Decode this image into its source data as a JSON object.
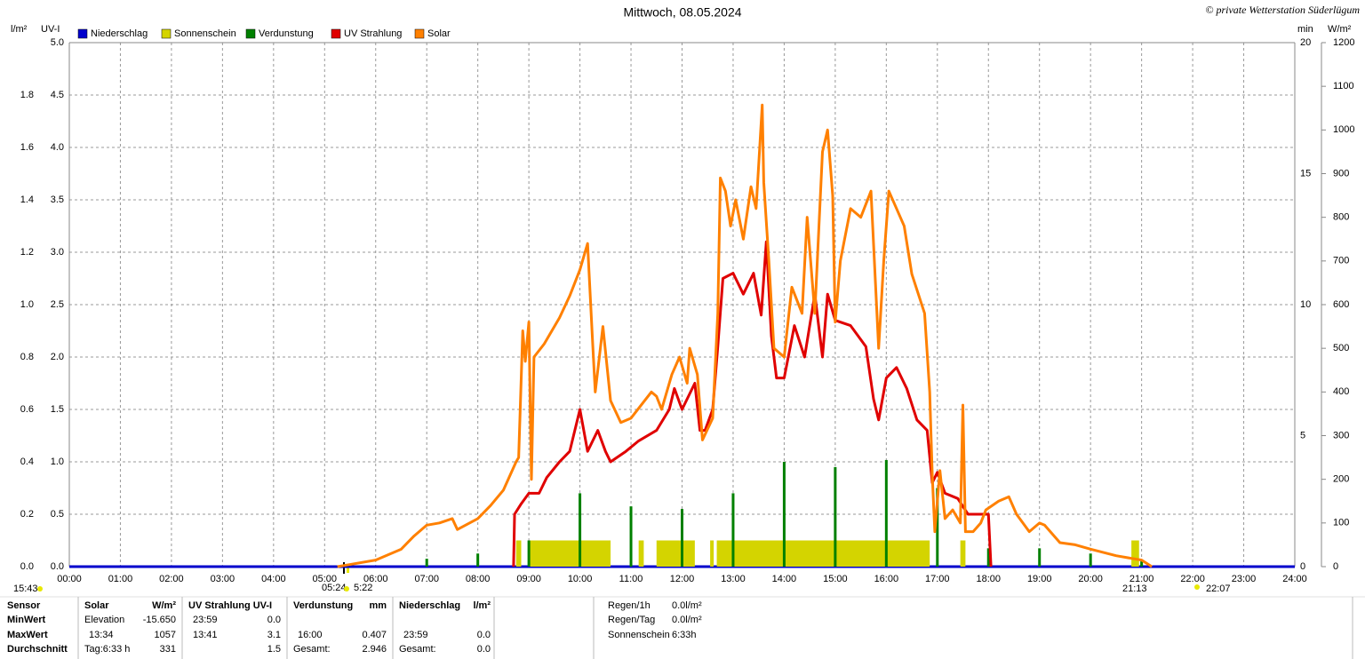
{
  "chart_data": {
    "type": "multi-axis",
    "title": "Mittwoch, 08.05.2024",
    "copyright": "© private Wetterstation Süderlügum",
    "xlim": [
      0,
      24
    ],
    "xticks": [
      {
        "value": 0,
        "label": "00:00"
      },
      {
        "value": 1,
        "label": "01:00"
      },
      {
        "value": 2,
        "label": "02:00"
      },
      {
        "value": 3,
        "label": "03:00"
      },
      {
        "value": 4,
        "label": "04:00"
      },
      {
        "value": 5,
        "label": "05:00"
      },
      {
        "value": 6,
        "label": "06:00"
      },
      {
        "value": 7,
        "label": "07:00"
      },
      {
        "value": 8,
        "label": "08:00"
      },
      {
        "value": 9,
        "label": "09:00"
      },
      {
        "value": 10,
        "label": "10:00"
      },
      {
        "value": 11,
        "label": "11:00"
      },
      {
        "value": 12,
        "label": "12:00"
      },
      {
        "value": 13,
        "label": "13:00"
      },
      {
        "value": 14,
        "label": "14:00"
      },
      {
        "value": 15,
        "label": "15:00"
      },
      {
        "value": 16,
        "label": "16:00"
      },
      {
        "value": 17,
        "label": "17:00"
      },
      {
        "value": 18,
        "label": "18:00"
      },
      {
        "value": 19,
        "label": "19:00"
      },
      {
        "value": 20,
        "label": "20:00"
      },
      {
        "value": 21,
        "label": "21:00"
      },
      {
        "value": 22,
        "label": "22:00"
      },
      {
        "value": 23,
        "label": "23:00"
      },
      {
        "value": 24,
        "label": "24:00"
      }
    ],
    "ylabel": "l/m²",
    "ylim": [
      0,
      2
    ],
    "yticks": [
      {
        "value": 0,
        "label": "0.0"
      },
      0.2,
      0.4,
      0.6,
      0.8,
      {
        "value": 1,
        "label": "1.0"
      },
      1.2,
      1.4,
      1.6,
      1.8
    ],
    "uvlabel": "UV-I",
    "uvlim": [
      0,
      5
    ],
    "uvticks": [
      {
        "value": 0,
        "label": "0.0"
      },
      0.5,
      {
        "value": 1,
        "label": "1.0"
      },
      1.5,
      {
        "value": 2,
        "label": "2.0"
      },
      2.5,
      {
        "value": 3,
        "label": "3.0"
      },
      3.5,
      {
        "value": 4,
        "label": "4.0"
      },
      4.5,
      {
        "value": 5,
        "label": "5.0"
      }
    ],
    "y2label": "min",
    "y2lim": [
      0,
      20
    ],
    "y2ticks": [
      0,
      5,
      10,
      15,
      20
    ],
    "y3label": "W/m²",
    "y3lim": [
      0,
      1200
    ],
    "y3ticks": [
      0,
      100,
      200,
      300,
      400,
      500,
      600,
      700,
      800,
      900,
      1000,
      1100,
      1200
    ],
    "grid": true,
    "series": [
      {
        "name": "Niederschlag",
        "color": "#0000cc",
        "label_color": "#0000a0",
        "axis": "y",
        "kind": "line",
        "x": [
          0,
          24
        ],
        "values": [
          0,
          0
        ]
      },
      {
        "name": "Sonnenschein",
        "color": "#d4d400",
        "label_color": "#c8c800",
        "axis": "y2",
        "kind": "interval",
        "start": [
          8.75,
          9.0,
          11.15,
          11.5,
          12.55,
          12.68,
          17.45,
          20.8
        ],
        "end": [
          8.85,
          10.6,
          11.25,
          12.25,
          12.62,
          16.85,
          17.55,
          20.95
        ],
        "values": [
          1,
          1,
          1,
          1,
          1,
          1,
          1,
          1
        ]
      },
      {
        "name": "Verdunstung",
        "color": "#008000",
        "label_color": "#0000a0",
        "axis": "y",
        "kind": "spike",
        "x": [
          7,
          8,
          9,
          10,
          11,
          12,
          13,
          14,
          15,
          16,
          17,
          18,
          19,
          20,
          21
        ],
        "values": [
          0.03,
          0.05,
          0.1,
          0.28,
          0.23,
          0.22,
          0.28,
          0.4,
          0.38,
          0.407,
          0.3,
          0.07,
          0.07,
          0.05,
          0.02
        ]
      },
      {
        "name": "UV Strahlung",
        "color": "#e00000",
        "label_color": "#e00000",
        "axis": "uv",
        "kind": "line",
        "x": [
          8.7,
          8.72,
          8.85,
          9.0,
          9.2,
          9.35,
          9.6,
          9.8,
          10.0,
          10.15,
          10.35,
          10.5,
          10.6,
          10.9,
          11.15,
          11.5,
          11.75,
          11.85,
          12.0,
          12.25,
          12.35,
          12.45,
          12.6,
          12.7,
          12.8,
          13.0,
          13.2,
          13.4,
          13.55,
          13.65,
          13.75,
          13.85,
          14.0,
          14.2,
          14.4,
          14.6,
          14.75,
          14.85,
          15.0,
          15.3,
          15.6,
          15.75,
          15.85,
          16.0,
          16.2,
          16.4,
          16.6,
          16.8,
          16.9,
          17.0,
          17.15,
          17.4,
          17.6,
          18.0,
          18.05
        ],
        "values": [
          0,
          0.5,
          0.6,
          0.7,
          0.7,
          0.85,
          1.0,
          1.1,
          1.5,
          1.1,
          1.3,
          1.1,
          1.0,
          1.1,
          1.2,
          1.3,
          1.5,
          1.7,
          1.5,
          1.75,
          1.3,
          1.3,
          1.5,
          2.1,
          2.75,
          2.8,
          2.6,
          2.8,
          2.4,
          3.1,
          2.2,
          1.8,
          1.8,
          2.3,
          2.0,
          2.6,
          2.0,
          2.6,
          2.35,
          2.3,
          2.1,
          1.6,
          1.4,
          1.8,
          1.9,
          1.7,
          1.4,
          1.3,
          0.8,
          0.9,
          0.7,
          0.65,
          0.5,
          0.5,
          0
        ]
      },
      {
        "name": "Solar",
        "color": "#ff8000",
        "label_color": "#ff8000",
        "axis": "y3",
        "kind": "line",
        "x": [
          5.25,
          5.5,
          6.0,
          6.5,
          6.75,
          7.0,
          7.25,
          7.5,
          7.6,
          8.0,
          8.25,
          8.5,
          8.75,
          8.8,
          8.88,
          8.93,
          9.0,
          9.05,
          9.1,
          9.3,
          9.6,
          9.8,
          10.0,
          10.15,
          10.25,
          10.3,
          10.45,
          10.6,
          10.8,
          11.0,
          11.2,
          11.4,
          11.5,
          11.6,
          11.8,
          11.95,
          12.1,
          12.15,
          12.3,
          12.4,
          12.6,
          12.7,
          12.75,
          12.85,
          12.95,
          13.05,
          13.2,
          13.35,
          13.45,
          13.57,
          13.6,
          13.7,
          13.8,
          14.0,
          14.15,
          14.35,
          14.45,
          14.6,
          14.75,
          14.85,
          14.95,
          15.0,
          15.1,
          15.3,
          15.5,
          15.7,
          15.85,
          15.95,
          16.05,
          16.2,
          16.35,
          16.5,
          16.75,
          16.85,
          16.9,
          16.95,
          17.05,
          17.15,
          17.3,
          17.45,
          17.5,
          17.55,
          17.7,
          17.85,
          17.95,
          18.2,
          18.4,
          18.55,
          18.8,
          19.0,
          19.1,
          19.4,
          19.7,
          20.0,
          20.5,
          21.0,
          21.2
        ],
        "values": [
          0,
          5,
          15,
          40,
          70,
          95,
          100,
          110,
          85,
          110,
          140,
          175,
          240,
          250,
          540,
          470,
          560,
          200,
          480,
          510,
          570,
          620,
          680,
          740,
          510,
          400,
          550,
          380,
          330,
          340,
          370,
          400,
          390,
          360,
          440,
          480,
          420,
          500,
          440,
          290,
          340,
          580,
          890,
          860,
          780,
          840,
          750,
          870,
          820,
          1057,
          880,
          700,
          500,
          480,
          640,
          580,
          800,
          580,
          950,
          1000,
          850,
          560,
          700,
          820,
          800,
          860,
          500,
          700,
          860,
          820,
          780,
          670,
          580,
          400,
          210,
          80,
          220,
          110,
          130,
          100,
          370,
          80,
          80,
          100,
          130,
          150,
          160,
          120,
          80,
          100,
          95,
          55,
          50,
          40,
          25,
          15,
          0
        ]
      }
    ],
    "markers": [
      "15:43",
      "05:24",
      "5:22",
      "21:13",
      "22:07"
    ],
    "table": {
      "rows": [
        [
          "Sensor",
          "Solar",
          "W/m²",
          "UV Strahlung UV-I",
          null,
          "Verdunstung",
          "mm",
          "Niederschlag",
          "l/m²"
        ],
        [
          "MinWert",
          "Elevation",
          "-15.650",
          "23:59",
          "0.0",
          null,
          null,
          null,
          null
        ],
        [
          "MaxWert",
          "13:34",
          "1057",
          "13:41",
          "3.1",
          "16:00",
          "0.407",
          "23:59",
          "0.0"
        ],
        [
          "Durchschnitt",
          "Tag:6:33 h",
          "331",
          null,
          "1.5",
          "Gesamt:",
          "2.946",
          "Gesamt:",
          "0.0"
        ]
      ]
    },
    "summary": [
      [
        "Regen/1h",
        "0.0l/m²"
      ],
      [
        "Regen/Tag",
        "0.0l/m²"
      ],
      [
        "Sonnenschein",
        "6:33h"
      ]
    ]
  }
}
